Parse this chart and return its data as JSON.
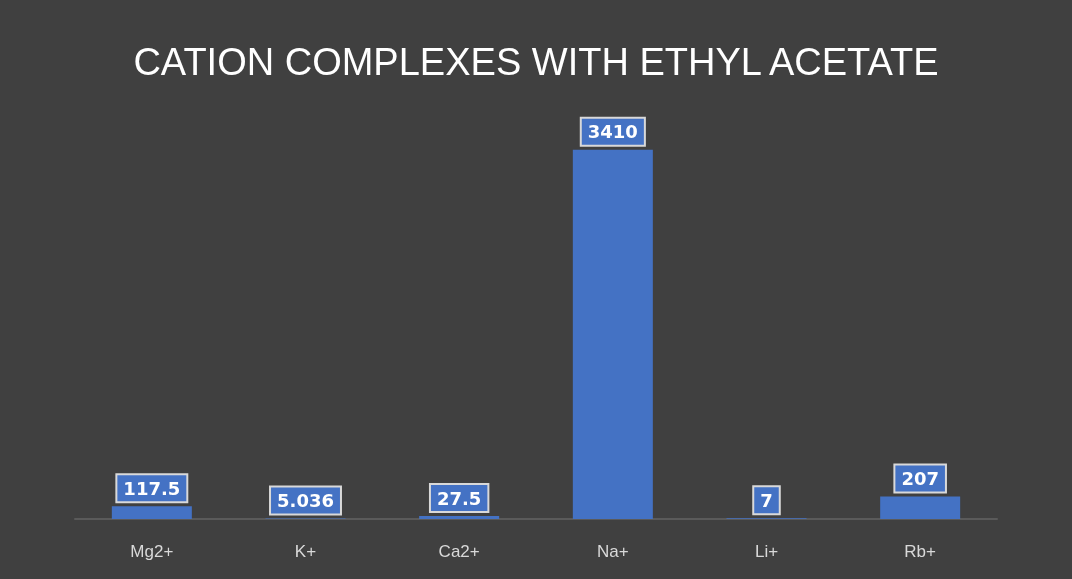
{
  "chart_data": {
    "type": "bar",
    "title": "CATION COMPLEXES WITH ETHYL ACETATE",
    "categories": [
      "Mg2+",
      "K+",
      "Ca2+",
      "Na+",
      "Li+",
      "Rb+"
    ],
    "values": [
      117.5,
      5.036,
      27.5,
      3410,
      7,
      207
    ],
    "color": "#4472c4",
    "data_labels": true
  }
}
